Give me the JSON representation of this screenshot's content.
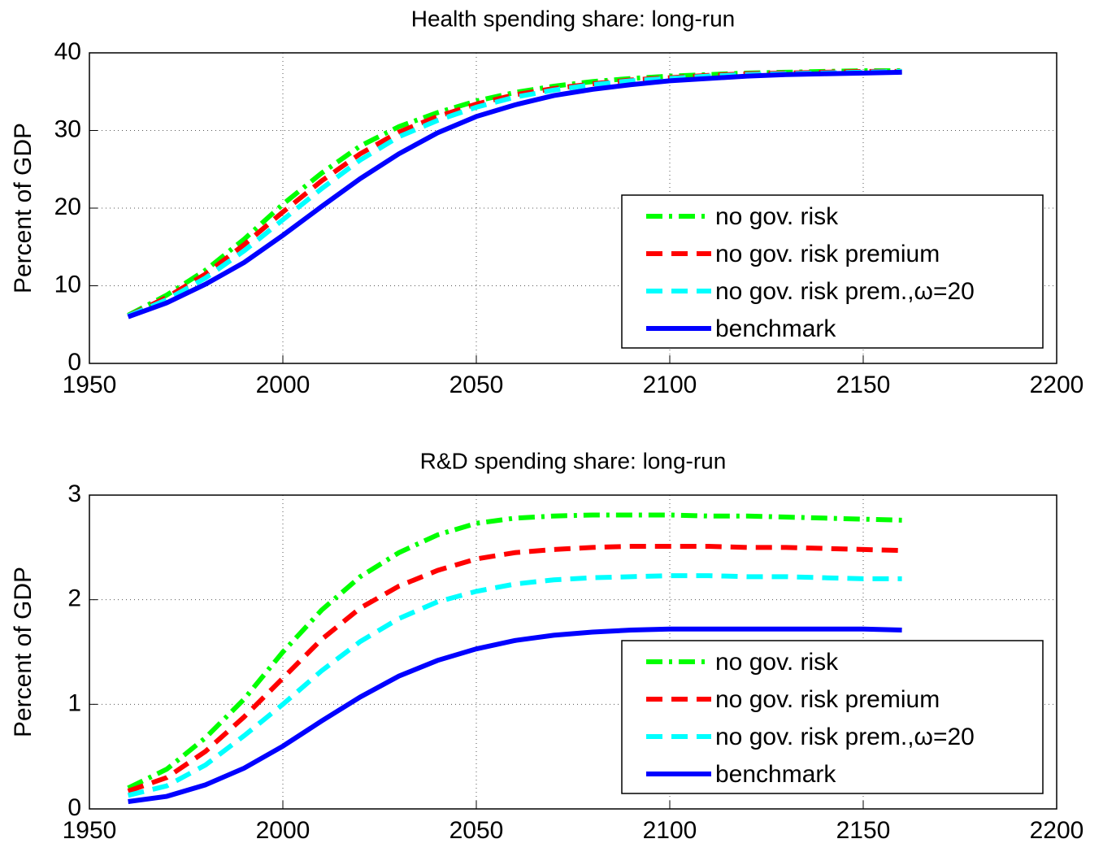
{
  "chart_data": [
    {
      "type": "line",
      "title": "Health spending share: long-run",
      "ylabel": "Percent of GDP",
      "x": [
        1960,
        1970,
        1980,
        1990,
        2000,
        2010,
        2020,
        2030,
        2040,
        2050,
        2060,
        2070,
        2080,
        2090,
        2100,
        2110,
        2120,
        2130,
        2140,
        2150,
        2160
      ],
      "series": [
        {
          "name": "no gov. risk",
          "color": "#00ff00",
          "linestyle": "dashdot",
          "values": [
            6.2,
            8.8,
            12,
            16,
            20.5,
            24.5,
            28,
            30.5,
            32.3,
            33.8,
            34.9,
            35.7,
            36.3,
            36.7,
            37,
            37.2,
            37.4,
            37.5,
            37.6,
            37.7,
            37.7
          ]
        },
        {
          "name": "no gov. risk premium",
          "color": "#ff0000",
          "linestyle": "dashed",
          "values": [
            6.1,
            8.5,
            11.5,
            15.3,
            19.5,
            23.5,
            27,
            29.8,
            31.8,
            33.4,
            34.6,
            35.4,
            36,
            36.5,
            36.8,
            37.1,
            37.3,
            37.4,
            37.5,
            37.6,
            37.6
          ]
        },
        {
          "name": "no gov. risk prem.,ω=20",
          "color": "#00ffff",
          "linestyle": "dashed",
          "values": [
            6.1,
            8.2,
            11,
            14.5,
            18.5,
            22.5,
            26.2,
            29.2,
            31.3,
            33,
            34.3,
            35.2,
            35.9,
            36.4,
            36.7,
            37,
            37.2,
            37.3,
            37.4,
            37.5,
            37.6
          ]
        },
        {
          "name": "benchmark",
          "color": "#0000ff",
          "linestyle": "solid",
          "values": [
            6,
            7.8,
            10.2,
            13,
            16.5,
            20.2,
            23.8,
            27,
            29.7,
            31.8,
            33.3,
            34.5,
            35.3,
            35.9,
            36.4,
            36.7,
            37,
            37.2,
            37.3,
            37.4,
            37.5
          ]
        }
      ],
      "xlim": [
        1950,
        2200
      ],
      "xticks": [
        1950,
        2000,
        2050,
        2100,
        2150,
        2200
      ],
      "ylim": [
        0,
        40
      ],
      "yticks": [
        0,
        10,
        20,
        30,
        40
      ],
      "grid": true,
      "legend": "lower right"
    },
    {
      "type": "line",
      "title": "R&D spending share: long-run",
      "ylabel": "Percent of GDP",
      "x": [
        1960,
        1970,
        1980,
        1990,
        2000,
        2010,
        2020,
        2030,
        2040,
        2050,
        2060,
        2070,
        2080,
        2090,
        2100,
        2110,
        2120,
        2130,
        2140,
        2150,
        2160
      ],
      "series": [
        {
          "name": "no gov. risk",
          "color": "#00ff00",
          "linestyle": "dashdot",
          "values": [
            0.2,
            0.38,
            0.68,
            1.05,
            1.5,
            1.9,
            2.22,
            2.45,
            2.62,
            2.73,
            2.78,
            2.8,
            2.81,
            2.81,
            2.81,
            2.8,
            2.8,
            2.79,
            2.78,
            2.77,
            2.76
          ]
        },
        {
          "name": "no gov. risk premium",
          "color": "#ff0000",
          "linestyle": "dashed",
          "values": [
            0.17,
            0.3,
            0.55,
            0.88,
            1.25,
            1.62,
            1.92,
            2.13,
            2.28,
            2.39,
            2.45,
            2.48,
            2.5,
            2.51,
            2.51,
            2.51,
            2.5,
            2.5,
            2.49,
            2.48,
            2.47
          ]
        },
        {
          "name": "no gov. risk prem.,ω=20",
          "color": "#00ffff",
          "linestyle": "dashed",
          "values": [
            0.13,
            0.22,
            0.42,
            0.7,
            1.0,
            1.32,
            1.6,
            1.82,
            1.98,
            2.08,
            2.15,
            2.19,
            2.21,
            2.22,
            2.23,
            2.23,
            2.22,
            2.22,
            2.21,
            2.2,
            2.2
          ]
        },
        {
          "name": "benchmark",
          "color": "#0000ff",
          "linestyle": "solid",
          "values": [
            0.07,
            0.12,
            0.23,
            0.39,
            0.6,
            0.84,
            1.07,
            1.27,
            1.42,
            1.53,
            1.61,
            1.66,
            1.69,
            1.71,
            1.72,
            1.72,
            1.72,
            1.72,
            1.72,
            1.72,
            1.71
          ]
        }
      ],
      "xlim": [
        1950,
        2200
      ],
      "xticks": [
        1950,
        2000,
        2050,
        2100,
        2150,
        2200
      ],
      "ylim": [
        0,
        3
      ],
      "yticks": [
        0,
        1,
        2,
        3
      ],
      "grid": true,
      "legend": "lower right"
    }
  ]
}
